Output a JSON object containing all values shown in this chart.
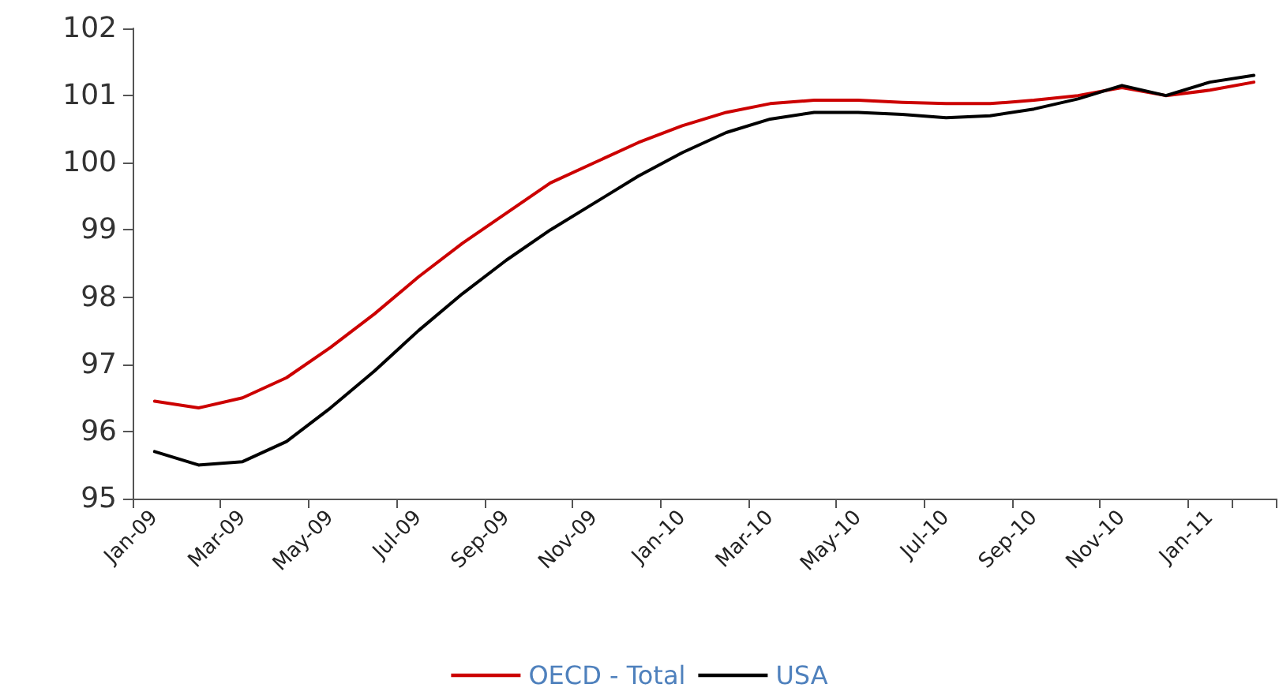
{
  "chart_data": {
    "type": "line",
    "categories": [
      "Jan-09",
      null,
      "Mar-09",
      null,
      "May-09",
      null,
      "Jul-09",
      null,
      "Sep-09",
      null,
      "Nov-09",
      null,
      "Jan-10",
      null,
      "Mar-10",
      null,
      "May-10",
      null,
      "Jul-10",
      null,
      "Sep-10",
      null,
      "Nov-10",
      null,
      "Jan-11",
      null
    ],
    "series": [
      {
        "name": "OECD - Total",
        "color": "#cc0000",
        "values": [
          96.45,
          96.35,
          96.5,
          96.8,
          97.25,
          97.75,
          98.3,
          98.8,
          99.25,
          99.7,
          100.0,
          100.3,
          100.55,
          100.75,
          100.88,
          100.93,
          100.93,
          100.9,
          100.88,
          100.88,
          100.93,
          101.0,
          101.12,
          101.0,
          101.08,
          101.2
        ]
      },
      {
        "name": "USA",
        "color": "#000000",
        "values": [
          95.7,
          95.5,
          95.55,
          95.85,
          96.35,
          96.9,
          97.5,
          98.05,
          98.55,
          99.0,
          99.4,
          99.8,
          100.15,
          100.45,
          100.65,
          100.75,
          100.75,
          100.72,
          100.67,
          100.7,
          100.8,
          100.95,
          101.15,
          101.0,
          101.2,
          101.3
        ]
      }
    ],
    "ylim": [
      95,
      102
    ],
    "yticks": [
      95,
      96,
      97,
      98,
      99,
      100,
      101,
      102
    ],
    "grid": false,
    "legend": "bottom",
    "marker": "none",
    "line_style": "solid"
  }
}
